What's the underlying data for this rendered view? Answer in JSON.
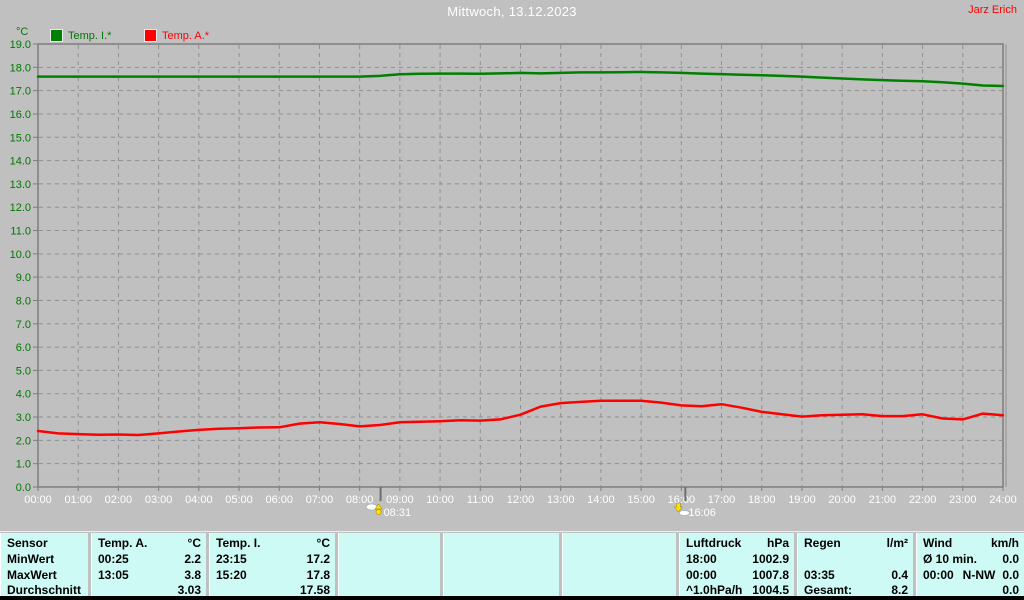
{
  "header": {
    "title": "Mittwoch, 13.12.2023",
    "author": "Jarz Erich"
  },
  "colors": {
    "background": "#C0C0C0",
    "title_text": "#ffffff",
    "author_text": "#ff0000",
    "axis_label_green": "#007800",
    "grid": "#8f8f8f",
    "x_label_white": "#ffffff",
    "temp_i_line": "#008000",
    "temp_a_line": "#ff0000",
    "table_bg": "#CDFAF4",
    "table_text": "#000000",
    "bottom_bar": "#000000"
  },
  "chart_data": {
    "type": "line",
    "title": "Mittwoch, 13.12.2023",
    "xlabel": "",
    "ylabel": "°C",
    "ylim": [
      0,
      19
    ],
    "xlim_hours": [
      0,
      24
    ],
    "grid": true,
    "legend_position": "top-left",
    "y_ticks": [
      "19.0",
      "18.0",
      "17.0",
      "16.0",
      "15.0",
      "14.0",
      "13.0",
      "12.0",
      "11.0",
      "10.0",
      "9.0",
      "8.0",
      "7.0",
      "6.0",
      "5.0",
      "4.0",
      "3.0",
      "2.0",
      "1.0",
      "0.0"
    ],
    "x_tick_labels": [
      "00:00",
      "01:00",
      "02:00",
      "03:00",
      "04:00",
      "05:00",
      "06:00",
      "07:00",
      "08:00",
      "09:00",
      "10:00",
      "11:00",
      "12:00",
      "13:00",
      "14:00",
      "15:00",
      "16:00",
      "17:00",
      "18:00",
      "19:00",
      "20:00",
      "21:00",
      "22:00",
      "23:00",
      "24:00"
    ],
    "x_step_hours": 0.5,
    "series": [
      {
        "name": "Temp. I.*",
        "color": "#008000",
        "values": [
          17.6,
          17.6,
          17.6,
          17.6,
          17.6,
          17.6,
          17.6,
          17.6,
          17.6,
          17.6,
          17.6,
          17.6,
          17.6,
          17.6,
          17.6,
          17.6,
          17.6,
          17.63,
          17.7,
          17.72,
          17.73,
          17.73,
          17.72,
          17.74,
          17.76,
          17.74,
          17.76,
          17.78,
          17.78,
          17.79,
          17.8,
          17.78,
          17.76,
          17.73,
          17.71,
          17.68,
          17.66,
          17.63,
          17.6,
          17.56,
          17.52,
          17.48,
          17.45,
          17.42,
          17.4,
          17.36,
          17.3,
          17.22,
          17.2
        ]
      },
      {
        "name": "Temp. A.*",
        "color": "#ff0000",
        "values": [
          2.4,
          2.3,
          2.27,
          2.24,
          2.25,
          2.23,
          2.3,
          2.38,
          2.45,
          2.5,
          2.52,
          2.55,
          2.56,
          2.72,
          2.78,
          2.7,
          2.6,
          2.66,
          2.78,
          2.8,
          2.82,
          2.86,
          2.85,
          2.9,
          3.1,
          3.45,
          3.6,
          3.65,
          3.7,
          3.7,
          3.7,
          3.62,
          3.5,
          3.46,
          3.55,
          3.4,
          3.22,
          3.12,
          3.02,
          3.08,
          3.1,
          3.12,
          3.04,
          3.04,
          3.12,
          2.94,
          2.9,
          3.15,
          3.08
        ]
      }
    ],
    "markers": [
      {
        "type": "sunrise",
        "time": "08:31",
        "hour": 8.52
      },
      {
        "type": "sunset",
        "time": "16:06",
        "hour": 16.1
      }
    ]
  },
  "table": {
    "row_labels": [
      "Sensor",
      "MinWert",
      "MaxWert",
      "Durchschnitt"
    ],
    "panels": [
      {
        "name": "Temp. A.",
        "unit": "°C",
        "rows": [
          [
            "00:25",
            "",
            "2.2"
          ],
          [
            "13:05",
            "",
            "3.8"
          ],
          [
            "",
            "",
            "3.03"
          ]
        ]
      },
      {
        "name": "Temp. I.",
        "unit": "°C",
        "rows": [
          [
            "23:15",
            "",
            "17.2"
          ],
          [
            "15:20",
            "",
            "17.8"
          ],
          [
            "",
            "",
            "17.58"
          ]
        ]
      },
      {
        "name": "",
        "unit": "",
        "rows": [
          [
            "",
            "",
            ""
          ],
          [
            "",
            "",
            ""
          ],
          [
            "",
            "",
            ""
          ]
        ]
      },
      {
        "name": "",
        "unit": "",
        "rows": [
          [
            "",
            "",
            ""
          ],
          [
            "",
            "",
            ""
          ],
          [
            "",
            "",
            ""
          ]
        ]
      },
      {
        "name": "",
        "unit": "",
        "rows": [
          [
            "",
            "",
            ""
          ],
          [
            "",
            "",
            ""
          ],
          [
            "",
            "",
            ""
          ]
        ]
      },
      {
        "name": "Luftdruck",
        "unit": "hPa",
        "rows": [
          [
            "18:00",
            "",
            "1002.9"
          ],
          [
            "00:00",
            "",
            "1007.8"
          ],
          [
            "^1.0hPa/h",
            "",
            "1004.5"
          ]
        ]
      },
      {
        "name": "Regen",
        "unit": "l/m²",
        "rows": [
          [
            "",
            "",
            ""
          ],
          [
            "03:35",
            "",
            "0.4"
          ],
          [
            "Gesamt:",
            "",
            "8.2"
          ]
        ]
      },
      {
        "name": "Wind",
        "unit": "km/h",
        "rows": [
          [
            "Ø 10 min.",
            "",
            "0.0"
          ],
          [
            "00:00",
            "N-NW",
            "0.0"
          ],
          [
            "",
            "",
            "0.0"
          ]
        ]
      }
    ]
  }
}
